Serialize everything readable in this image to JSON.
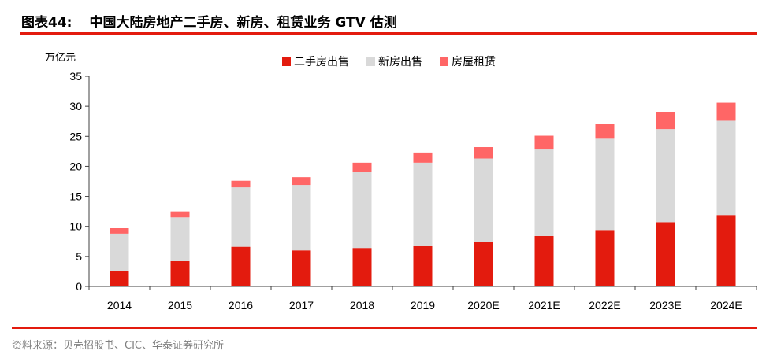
{
  "header": {
    "figure_no": "图表44:",
    "title": "中国大陆房地产二手房、新房、租赁业务 GTV 估测"
  },
  "footer": {
    "source": "资料来源：贝壳招股书、CIC、华泰证券研究所"
  },
  "colors": {
    "accent": "#e31b0e",
    "second_hand": "#e31b0e",
    "new_home": "#d9d9d9",
    "rental": "#ff6666"
  },
  "chart_data": {
    "type": "bar",
    "stacked": true,
    "title": "中国大陆房地产二手房、新房、租赁业务 GTV 估测",
    "ylabel": "万亿元",
    "xlabel": "",
    "ylim": [
      0,
      35
    ],
    "yticks": [
      0,
      5,
      10,
      15,
      20,
      25,
      30,
      35
    ],
    "legend_position": "top-center",
    "grid": false,
    "categories": [
      "2014",
      "2015",
      "2016",
      "2017",
      "2018",
      "2019",
      "2020E",
      "2021E",
      "2022E",
      "2023E",
      "2024E"
    ],
    "series": [
      {
        "name": "二手房出售",
        "color": "#e31b0e",
        "values": [
          2.6,
          4.2,
          6.6,
          6.0,
          6.4,
          6.7,
          7.4,
          8.4,
          9.4,
          10.7,
          11.9
        ]
      },
      {
        "name": "新房出售",
        "color": "#d9d9d9",
        "values": [
          6.2,
          7.3,
          9.9,
          10.9,
          12.7,
          13.9,
          13.9,
          14.4,
          15.2,
          15.5,
          15.7
        ]
      },
      {
        "name": "房屋租赁",
        "color": "#ff6666",
        "values": [
          0.9,
          1.0,
          1.1,
          1.3,
          1.5,
          1.7,
          1.9,
          2.3,
          2.5,
          2.9,
          3.0
        ]
      }
    ]
  }
}
